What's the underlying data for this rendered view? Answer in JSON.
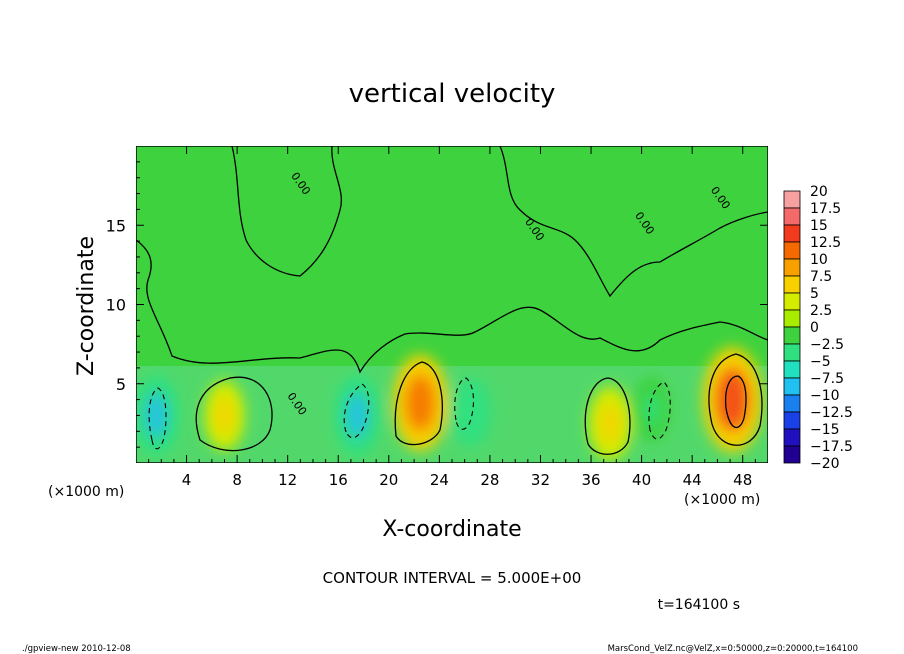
{
  "chart_data": {
    "type": "heatmap",
    "title": "vertical velocity",
    "xlabel": "X-coordinate",
    "ylabel": "Z-coordinate",
    "x_unit_left": "(×1000 m)",
    "x_unit_right": "(×1000 m)",
    "xlim": [
      0,
      50
    ],
    "ylim": [
      0,
      20
    ],
    "x_ticks": [
      4,
      8,
      12,
      16,
      20,
      24,
      28,
      32,
      36,
      40,
      44,
      48
    ],
    "y_ticks": [
      5,
      10,
      15
    ],
    "contour_interval": "CONTOUR INTERVAL = 5.000E+00",
    "time_label": "t=164100 s",
    "footer_left": "./gpview-new  2010-12-08",
    "footer_right": "MarsCond_VelZ.nc@VelZ,x=0:50000,z=0:20000,t=164100",
    "colorbar": {
      "range": [
        -20,
        20
      ],
      "levels": [
        "20",
        "17.5",
        "15",
        "12.5",
        "10",
        "7.5",
        "5",
        "2.5",
        "0",
        "-2.5",
        "-5",
        "-7.5",
        "-10",
        "-12.5",
        "-15",
        "-17.5",
        "-20"
      ],
      "colors": [
        "#f7a0a0",
        "#f46a6a",
        "#f23a1c",
        "#f56a00",
        "#f7a000",
        "#f8d000",
        "#d4ec00",
        "#a8ec00",
        "#3ed23e",
        "#30e080",
        "#20e0c0",
        "#20c0f0",
        "#1a80f0",
        "#1a40e8",
        "#2010c0",
        "#200090"
      ]
    },
    "features": [
      {
        "x": 1.6,
        "z": 3.0,
        "value": -8
      },
      {
        "x": 7.0,
        "z": 3.0,
        "value": 5
      },
      {
        "x": 17.5,
        "z": 3.0,
        "value": -8
      },
      {
        "x": 22.5,
        "z": 3.8,
        "value": 11
      },
      {
        "x": 26.5,
        "z": 3.2,
        "value": -5
      },
      {
        "x": 37.5,
        "z": 2.5,
        "value": 6
      },
      {
        "x": 40.8,
        "z": 3.4,
        "value": -4
      },
      {
        "x": 47.2,
        "z": 4.0,
        "value": 13
      }
    ],
    "contour_labels": [
      {
        "text": "0.00",
        "x": 12.5,
        "z": 3.6
      },
      {
        "text": "0.00",
        "x": 12.8,
        "z": 17.5
      },
      {
        "text": "0.00",
        "x": 31.3,
        "z": 14.6
      },
      {
        "text": "0.00",
        "x": 40.0,
        "z": 15.0
      },
      {
        "text": "0.00",
        "x": 46.0,
        "z": 16.6
      }
    ]
  }
}
